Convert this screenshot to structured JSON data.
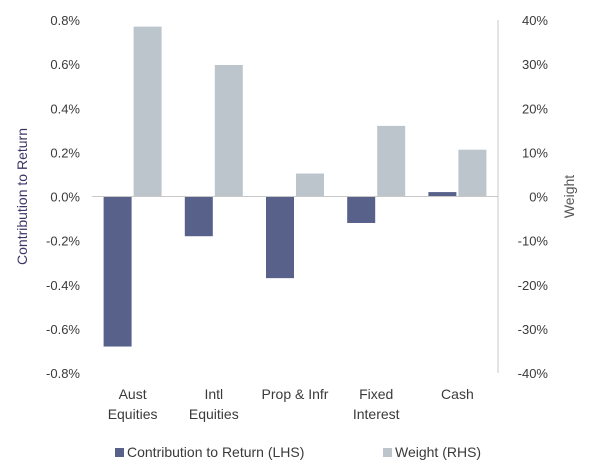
{
  "chart_data": {
    "type": "bar",
    "categories": [
      [
        "Aust",
        "Equities"
      ],
      [
        "Intl",
        "Equities"
      ],
      [
        "Prop & Infr"
      ],
      [
        "Fixed",
        "Interest"
      ],
      [
        "Cash"
      ]
    ],
    "series": [
      {
        "name": "Contribution to Return (LHS)",
        "axis": "left",
        "color": "#57618a",
        "values": [
          -0.68,
          -0.18,
          -0.37,
          -0.12,
          0.02
        ]
      },
      {
        "name": "Weight (RHS)",
        "axis": "right",
        "color": "#bcc4cc",
        "values": [
          38.5,
          29.8,
          5.2,
          16.0,
          10.6
        ]
      }
    ],
    "ylabel_left": "Contribution to Return",
    "ylabel_right": "Weight",
    "ylim_left": [
      -0.8,
      0.8
    ],
    "ylim_right": [
      -40,
      40
    ],
    "yticks_left": [
      "0.8%",
      "0.6%",
      "0.4%",
      "0.2%",
      "0.0%",
      "-0.2%",
      "-0.4%",
      "-0.6%",
      "-0.8%"
    ],
    "yticks_right": [
      "40%",
      "30%",
      "20%",
      "10%",
      "0%",
      "-10%",
      "-20%",
      "-30%",
      "-40%"
    ],
    "legend_position": "bottom",
    "colors": {
      "left_axis_title": "#3d3566",
      "right_axis_title": "#555555",
      "axis_line": "#c8c8c8"
    }
  }
}
